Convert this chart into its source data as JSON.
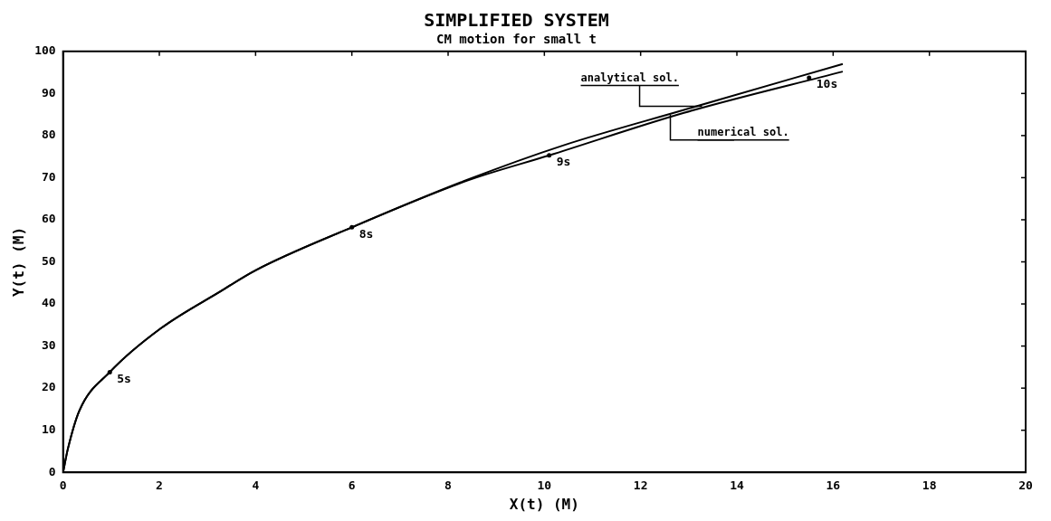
{
  "chart_data": {
    "type": "line",
    "title": "SIMPLIFIED SYSTEM",
    "subtitle": "CM motion for small t",
    "xlabel": "X(t) (M)",
    "ylabel": "Y(t) (M)",
    "series": [
      {
        "name": "analytical sol.",
        "color": "#000000",
        "x": [
          0,
          0.1,
          0.34,
          0.97,
          2.03,
          3.27,
          4.0,
          6.0,
          8.4,
          10.4,
          12.9,
          16.2
        ],
        "values": [
          0,
          5.6,
          14.7,
          23.8,
          34.2,
          43,
          48,
          58.2,
          69.5,
          77.7,
          86.1,
          97
        ]
      },
      {
        "name": "numerical sol.",
        "color": "#000000",
        "x": [
          0,
          0.1,
          0.34,
          0.97,
          2.03,
          3.27,
          4.0,
          6.0,
          8.4,
          10.1,
          12.9,
          16.2
        ],
        "values": [
          0,
          5.6,
          14.7,
          23.8,
          34.2,
          43,
          48,
          58.2,
          69.3,
          75.3,
          85.4,
          95.2
        ]
      }
    ],
    "xlim": [
      0,
      20
    ],
    "xticks": [
      0,
      2,
      4,
      6,
      8,
      10,
      12,
      14,
      16,
      18,
      20
    ],
    "ylim": [
      0,
      100
    ],
    "yticks": [
      0,
      10,
      20,
      30,
      40,
      50,
      60,
      70,
      80,
      90,
      100
    ],
    "grid": false,
    "legend": false,
    "annotations": [
      {
        "text": "5s",
        "x": 0.97,
        "y": 23.8
      },
      {
        "text": "8s",
        "x": 6.0,
        "y": 58.2
      },
      {
        "text": "9s",
        "x": 10.1,
        "y": 75.3
      },
      {
        "text": "10s",
        "x": 15.5,
        "y": 93.7
      }
    ]
  }
}
